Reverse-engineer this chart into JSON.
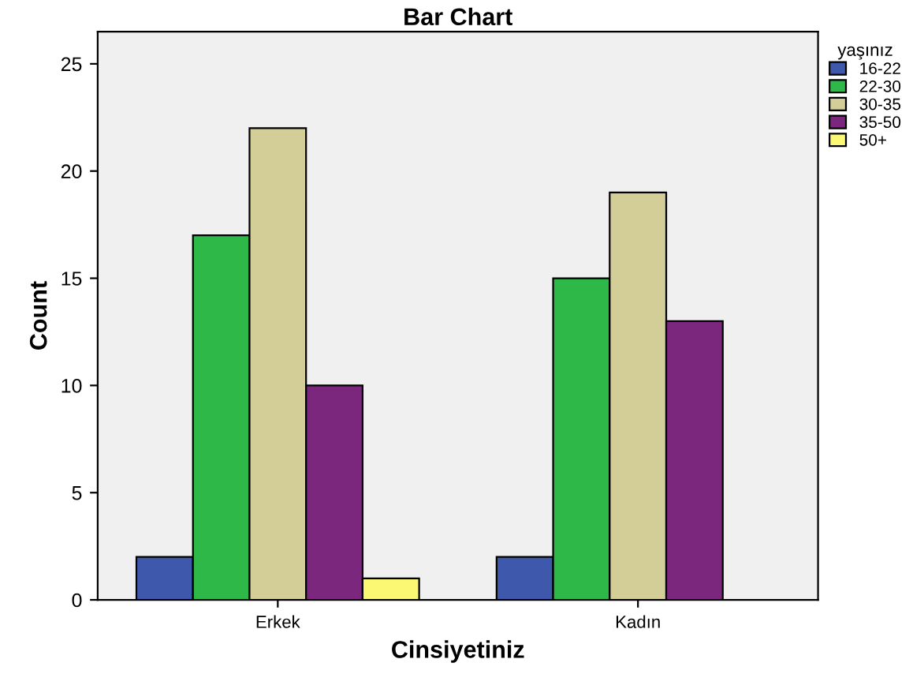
{
  "chart_data": {
    "type": "bar",
    "title": "Bar Chart",
    "xlabel": "Cinsiyetiniz",
    "ylabel": "Count",
    "legend_title": "yaşınız",
    "categories": [
      "Erkek",
      "Kadın"
    ],
    "series": [
      {
        "name": "16-22",
        "color": "#3e58ac",
        "values": [
          2,
          2
        ]
      },
      {
        "name": "22-30",
        "color": "#2eb848",
        "values": [
          17,
          15
        ]
      },
      {
        "name": "30-35",
        "color": "#d3ce97",
        "values": [
          22,
          19
        ]
      },
      {
        "name": "35-50",
        "color": "#7b277d",
        "values": [
          10,
          13
        ]
      },
      {
        "name": "50+",
        "color": "#fbf873",
        "values": [
          1,
          null
        ]
      }
    ],
    "ylim": [
      0,
      26.5
    ],
    "yticks": [
      0,
      5,
      10,
      15,
      20,
      25
    ],
    "grid": false,
    "legend": "top right"
  }
}
